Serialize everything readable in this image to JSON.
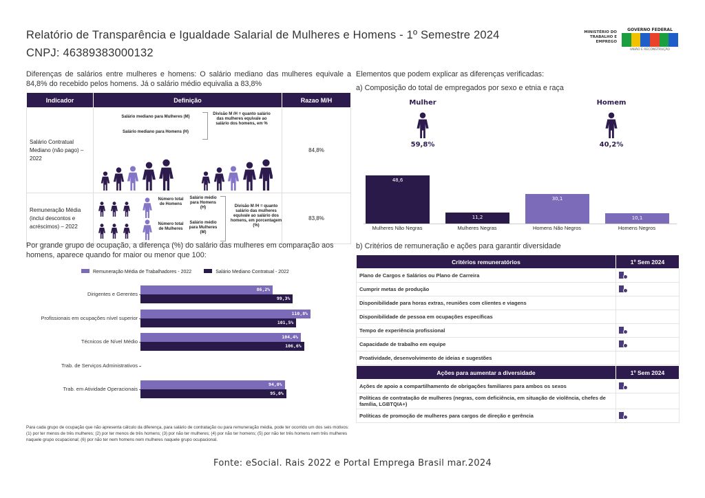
{
  "header": {
    "title": "Relatório de Transparência e Igualdade Salarial de Mulheres e Homens - 1º Semestre 2024",
    "cnpj": "CNPJ: 46389383000132",
    "logo_ministry": "MINISTÉRIO DO TRABALHO E EMPREGO",
    "logo_gov": "GOVERNO FEDERAL",
    "logo_brasil": "BRASIL",
    "logo_tagline": "UNIÃO E RECONSTRUÇÃO"
  },
  "intro": "Diferenças de salários entre mulheres e homens: O salário mediano das mulheres equivale a 84,8% do recebido pelos homens. Já o salário médio equivalia a 83,8%",
  "indicator_table": {
    "headers": [
      "Indicador",
      "Definição",
      "Razao M/H"
    ],
    "rows": [
      {
        "indicator": "Salário Contratual Mediano (não pago) – 2022",
        "def_a": "Salário mediano para Mulheres (M)",
        "def_b": "Salário mediano para Homens (H)",
        "def_c": "Divisão M /H = quanto salário das mulheres equivale ao salário dos homens, em %",
        "ratio": "84,8%"
      },
      {
        "indicator": "Remuneração Média (inclui descontos e acréscimos) – 2022",
        "n_h": "Número total de Homens",
        "s_h": "Salário médio para Homens (H)",
        "n_m": "Número total de Mulheres",
        "s_m": "Salário médio para Mulheres (M)",
        "def_c": "Divisão M /H = quanto salário das mulheres equivale ao salário dos homens, em porcentagem (%)",
        "ratio": "83,8%"
      }
    ]
  },
  "occupation_heading": "Por grande grupo de ocupação, a diferença (%) do salário das mulheres em comparação aos homens, aparece quando for maior ou menor que 100:",
  "chart_data": [
    {
      "type": "bar",
      "orientation": "horizontal",
      "categories": [
        "Dirigentes e Gerentes",
        "Profissionais em ocupações nível superior",
        "Técnicos de Nível Médio",
        "Trab. de Serviços Administrativos",
        "Trab. em Atividade Operacionais"
      ],
      "series": [
        {
          "name": "Remuneração Média de Trabalhadores - 2022",
          "color": "#7b6bb8",
          "values": [
            86.2,
            110.8,
            104.4,
            null,
            94.0
          ],
          "labels": [
            "86,2%",
            "110,8%",
            "104,4%",
            "",
            "94,0%"
          ]
        },
        {
          "name": "Salário Mediano Contratual - 2022",
          "color": "#2a1a4a",
          "values": [
            99.3,
            101.5,
            106.6,
            null,
            95.0
          ],
          "labels": [
            "99,3%",
            "101,5%",
            "106,6%",
            "",
            "95,0%"
          ]
        }
      ],
      "legend": "top"
    },
    {
      "type": "bar",
      "title": "a) Composição do total de empregados por sexo e etnia e raça",
      "categories": [
        "Mulheres Não Negras",
        "Mulheres Negras",
        "Homens Não Negros",
        "Homens Negros"
      ],
      "values": [
        48.6,
        11.2,
        30.1,
        10.1
      ],
      "labels": [
        "48,6",
        "11,2",
        "30,1",
        "10,1"
      ],
      "colors": [
        "#2a1a4a",
        "#2a1a4a",
        "#7b6bb8",
        "#7b6bb8"
      ]
    }
  ],
  "footnote": "Para cada grupo de ocupação que não apresenta cálculo da diferença, para salário de contratação ou para remuneração média, pode ter ocorrido um dos seis motivos: (1) por ter menos de três mulheres; (2) por ter menos de três homens; (3) por não ter mulheres; (4) por não ter homens; (5) por não ter três homens nem três mulheres naquele grupo ocupacional; (6) por não ter nem homens nem mulheres naquele grupo ocupacional.",
  "right": {
    "heading": "Elementos que podem explicar as diferenças verificadas:",
    "sub_a": "a) Composição do total de empregados por sexo e etnia e raça",
    "women_label": "Mulher",
    "women_pct": "59,8%",
    "men_label": "Homem",
    "men_pct": "40,2%",
    "sub_b": "b) Critérios de remuneração e ações para garantir diversidade"
  },
  "criteria": {
    "header": "Critérios remuneratórios",
    "col": "1º Sem 2024",
    "rows": [
      {
        "label": "Plano de Cargos e Salários ou Plano de Carreira",
        "checked": true
      },
      {
        "label": "Cumprir metas de produção",
        "checked": true
      },
      {
        "label": "Disponibilidade para horas extras, reuniões com clientes e viagens",
        "checked": false
      },
      {
        "label": "Disponibilidade de pessoa em ocupações específicas",
        "checked": false
      },
      {
        "label": "Tempo de experiência profissional",
        "checked": true
      },
      {
        "label": "Capacidade de trabalho em equipe",
        "checked": true
      },
      {
        "label": "Proatividade, desenvolvimento de ideias e sugestões",
        "checked": false
      }
    ]
  },
  "diversity": {
    "header": "Ações para aumentar a diversidade",
    "col": "1º Sem 2024",
    "rows": [
      {
        "label": "Ações de apoio a compartilhamento de obrigações familiares para ambos os sexos",
        "checked": true
      },
      {
        "label": "Políticas de contratação de mulheres (negras, com deficiência, em situação de violência, chefes de família, LGBTQIA+)",
        "checked": false
      },
      {
        "label": "Políticas de promoção de mulheres para cargos de direção e gerência",
        "checked": true
      }
    ]
  },
  "source": "Fonte: eSocial. Rais 2022 e Portal Emprega Brasil mar.2024"
}
